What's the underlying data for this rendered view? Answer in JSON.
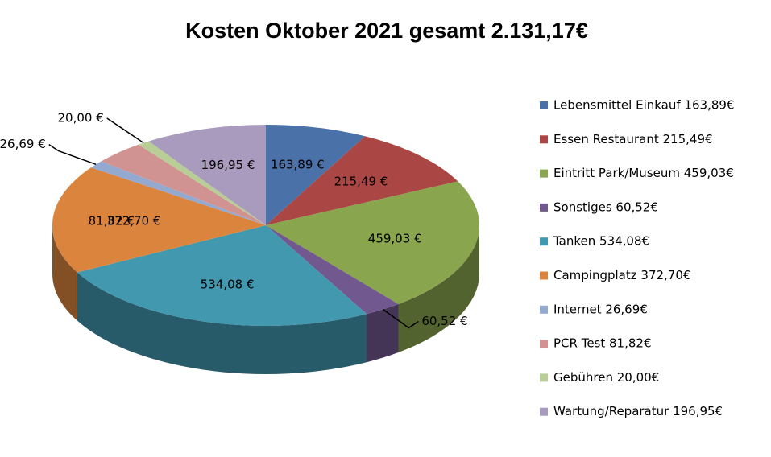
{
  "chart_data": {
    "type": "pie",
    "title": "Kosten Oktober 2021 gesamt 2.131,17€",
    "categories": [
      "Lebensmittel Einkauf 163,89€",
      "Essen Restaurant 215,49€",
      "Eintritt Park/Museum 459,03€",
      "Sonstiges 60,52€",
      "Tanken 534,08€",
      "Campingplatz 372,70€",
      "Internet 26,69€",
      "PCR Test 81,82€",
      "Gebühren 20,00€",
      "Wartung/Reparatur 196,95€"
    ],
    "values": [
      163.89,
      215.49,
      459.03,
      60.52,
      534.08,
      372.7,
      26.69,
      81.82,
      20.0,
      196.95
    ],
    "value_labels": [
      "163,89 €",
      "215,49 €",
      "459,03 €",
      "60,52 €",
      "534,08 €",
      "372,70 €",
      "26,69 €",
      "81,82 €",
      "20,00 €",
      "196,95 €"
    ],
    "colors": [
      "#4a72a8",
      "#aa4643",
      "#89a54e",
      "#71588f",
      "#4198af",
      "#db843d",
      "#93a9cf",
      "#d19392",
      "#b9cd96",
      "#a99bbd"
    ],
    "legend": "right"
  }
}
